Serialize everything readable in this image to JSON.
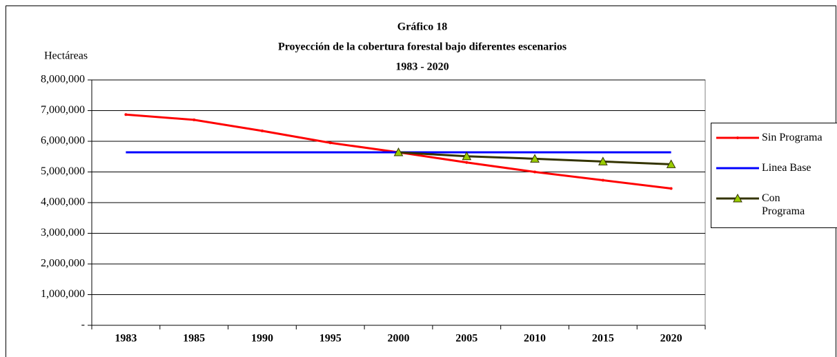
{
  "chart_data": {
    "type": "line",
    "title": "Gráfico 18",
    "subtitle": "Proyección de la cobertura forestal bajo diferentes escenarios",
    "period": "1983 - 2020",
    "y_label": "Hectáreas",
    "categories": [
      "1983",
      "1985",
      "1990",
      "1995",
      "2000",
      "2005",
      "2010",
      "2015",
      "2020"
    ],
    "series": [
      {
        "name": "Sin Programa",
        "color": "#ff0000",
        "marker": "dot",
        "values": [
          6870000,
          6700000,
          6340000,
          5950000,
          5640000,
          5310000,
          5000000,
          4730000,
          4460000
        ]
      },
      {
        "name": "Linea Base",
        "color": "#0000ff",
        "marker": "none",
        "values": [
          5640000,
          5640000,
          5640000,
          5640000,
          5640000,
          5640000,
          5640000,
          5640000,
          5640000
        ]
      },
      {
        "name": "Con Programa",
        "color": "#333300",
        "marker": "triangle",
        "marker_color": "#99cc00",
        "values": [
          null,
          null,
          null,
          null,
          5640000,
          5510000,
          5430000,
          5340000,
          5250000
        ]
      }
    ],
    "ylim": [
      0,
      8000000
    ],
    "yticks": [
      {
        "value": 0,
        "label": "-"
      },
      {
        "value": 1000000,
        "label": "1,000,000"
      },
      {
        "value": 2000000,
        "label": "2,000,000"
      },
      {
        "value": 3000000,
        "label": "3,000,000"
      },
      {
        "value": 4000000,
        "label": "4,000,000"
      },
      {
        "value": 5000000,
        "label": "5,000,000"
      },
      {
        "value": 6000000,
        "label": "6,000,000"
      },
      {
        "value": 7000000,
        "label": "7,000,000"
      },
      {
        "value": 8000000,
        "label": "8,000,000"
      }
    ],
    "grid": true,
    "legend": "right"
  }
}
